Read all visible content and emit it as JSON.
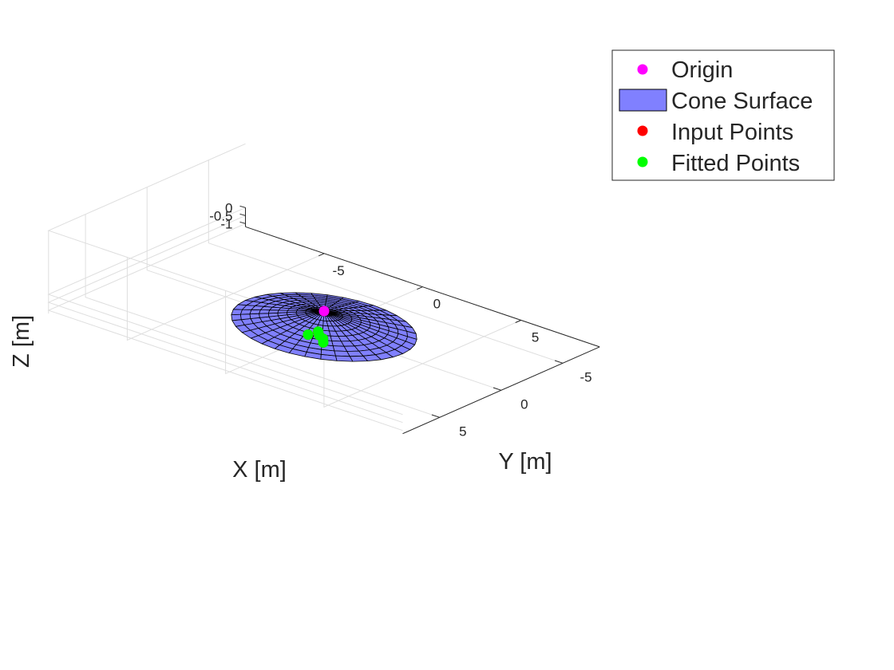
{
  "chart_data": {
    "type": "scatter",
    "view": "3d",
    "xlabel": "X [m]",
    "ylabel": "Y [m]",
    "zlabel": "Z [m]",
    "xlim": [
      -9,
      9
    ],
    "ylim": [
      -8,
      8
    ],
    "zlim": [
      -1.2,
      0
    ],
    "xticks": [
      -5,
      0,
      5
    ],
    "yticks": [
      -5,
      0,
      5
    ],
    "zticks": [
      -1,
      -0.5,
      0
    ],
    "xtick_labels": [
      "-5",
      "0",
      "5"
    ],
    "ytick_labels": [
      "-5",
      "0",
      "5"
    ],
    "ztick_labels": [
      "-1",
      "-0.5",
      "0"
    ],
    "grid": true,
    "legend_location": "top-right",
    "series": [
      {
        "name": "Origin",
        "kind": "marker",
        "color": "#ff00ff",
        "points": [
          [
            0,
            0,
            0
          ]
        ]
      },
      {
        "name": "Cone Surface",
        "kind": "surface",
        "color": "#8080ff",
        "edge_color": "#000000",
        "apex": [
          0,
          0,
          0
        ],
        "radius": 4,
        "depth": -1,
        "radial_divisions": 10,
        "angular_divisions": 36
      },
      {
        "name": "Input Points",
        "kind": "marker",
        "color": "#ff0000",
        "points": [
          [
            1.2,
            2.0,
            -0.55
          ],
          [
            0.9,
            1.85,
            -0.5
          ],
          [
            1.4,
            2.3,
            -0.6
          ],
          [
            0.7,
            1.6,
            -0.45
          ],
          [
            0.5,
            2.1,
            -0.55
          ]
        ]
      },
      {
        "name": "Fitted Points",
        "kind": "marker",
        "color": "#00ff00",
        "points": [
          [
            1.2,
            2.0,
            -0.55
          ],
          [
            0.9,
            1.85,
            -0.5
          ],
          [
            1.4,
            2.3,
            -0.6
          ],
          [
            0.7,
            1.6,
            -0.45
          ],
          [
            0.5,
            2.1,
            -0.55
          ]
        ]
      }
    ]
  }
}
